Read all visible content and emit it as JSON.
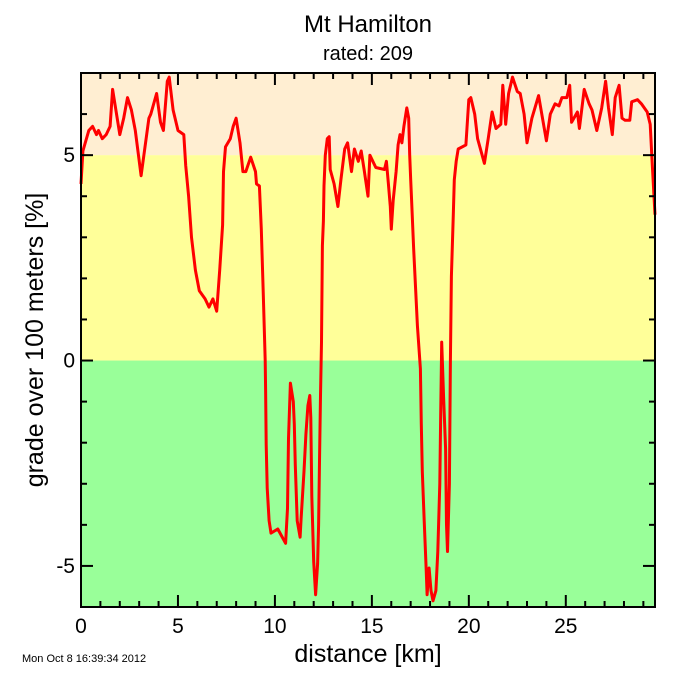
{
  "chart_data": {
    "type": "line",
    "title": "Mt Hamilton",
    "subtitle": "rated: 209",
    "xlabel": "distance [km]",
    "ylabel": "grade over 100 meters [%]",
    "xlim": [
      0,
      29.6
    ],
    "ylim": [
      -6,
      7
    ],
    "xticks": [
      0,
      5,
      10,
      15,
      20,
      25
    ],
    "yticks": [
      -5,
      0,
      5
    ],
    "grid": false,
    "bands": [
      {
        "from": 5,
        "to": 7,
        "color": "#ffeed2"
      },
      {
        "from": 0,
        "to": 5,
        "color": "#ffff99"
      },
      {
        "from": -6,
        "to": 0,
        "color": "#99ff99"
      }
    ],
    "line_color": "#ff0000",
    "x": [
      0,
      0.1,
      0.4,
      0.6,
      0.8,
      0.9,
      1.1,
      1.3,
      1.5,
      1.63,
      2.0,
      2.2,
      2.4,
      2.6,
      2.8,
      3.1,
      3.5,
      3.6,
      3.9,
      4.1,
      4.25,
      4.45,
      4.55,
      4.75,
      5.0,
      5.3,
      5.4,
      5.55,
      5.7,
      5.9,
      6.1,
      6.4,
      6.6,
      6.8,
      7.0,
      7.15,
      7.3,
      7.35,
      7.45,
      7.7,
      7.85,
      8.0,
      8.2,
      8.35,
      8.5,
      8.75,
      9.0,
      9.05,
      9.2,
      9.3,
      9.4,
      9.5,
      9.52,
      9.55,
      9.6,
      9.7,
      9.8,
      10.15,
      10.55,
      10.65,
      10.7,
      10.8,
      10.95,
      11.0,
      11.05,
      11.15,
      11.3,
      11.35,
      11.5,
      11.6,
      11.7,
      11.8,
      11.85,
      11.9,
      12.0,
      12.1,
      12.2,
      12.25,
      12.3,
      12.35,
      12.4,
      12.45,
      12.5,
      12.53,
      12.6,
      12.7,
      12.8,
      12.85,
      13.05,
      13.25,
      13.4,
      13.6,
      13.75,
      13.95,
      14.1,
      14.3,
      14.45,
      14.6,
      14.8,
      14.9,
      15.2,
      15.65,
      15.75,
      15.85,
      15.95,
      16.0,
      16.1,
      16.25,
      16.35,
      16.45,
      16.55,
      16.65,
      16.8,
      16.9,
      16.95,
      17.0,
      17.05,
      17.15,
      17.25,
      17.35,
      17.5,
      17.55,
      17.6,
      17.7,
      17.8,
      17.85,
      17.95,
      18.05,
      18.15,
      18.3,
      18.4,
      18.5,
      18.55,
      18.6,
      18.7,
      18.8,
      18.85,
      18.9,
      19.0,
      19.05,
      19.1,
      19.2,
      19.25,
      19.35,
      19.45,
      19.85,
      20.0,
      20.1,
      20.3,
      20.45,
      20.8,
      21.0,
      21.2,
      21.4,
      21.65,
      21.75,
      21.9,
      22.05,
      22.25,
      22.5,
      22.65,
      22.85,
      23.0,
      23.25,
      23.6,
      23.8,
      24.0,
      24.2,
      24.45,
      24.65,
      24.8,
      25.05,
      25.2,
      25.3,
      25.6,
      25.7,
      25.95,
      26.2,
      26.35,
      26.6,
      26.85,
      27.05,
      27.2,
      27.4,
      27.55,
      27.75,
      27.9,
      28.05,
      28.3,
      28.4,
      28.7,
      28.9,
      29.2,
      29.35,
      29.45,
      29.6
    ],
    "y": [
      4.3,
      5.1,
      5.6,
      5.7,
      5.5,
      5.6,
      5.4,
      5.5,
      5.7,
      6.6,
      5.5,
      5.9,
      6.4,
      6.1,
      5.6,
      4.5,
      5.9,
      6.0,
      6.5,
      5.8,
      5.6,
      6.8,
      6.9,
      6.1,
      5.6,
      5.5,
      4.75,
      4.0,
      3.0,
      2.2,
      1.7,
      1.5,
      1.3,
      1.5,
      1.2,
      2.2,
      3.3,
      4.6,
      5.2,
      5.4,
      5.7,
      5.9,
      5.3,
      4.6,
      4.6,
      4.95,
      4.6,
      4.3,
      4.25,
      3.2,
      1.6,
      0.0,
      -0.7,
      -2.05,
      -3.1,
      -3.9,
      -4.2,
      -4.1,
      -4.45,
      -3.6,
      -1.9,
      -0.55,
      -1.0,
      -1.55,
      -2.55,
      -3.9,
      -4.3,
      -3.85,
      -2.7,
      -1.8,
      -1.1,
      -0.85,
      -1.4,
      -3.3,
      -4.9,
      -5.7,
      -4.95,
      -4.0,
      -2.45,
      -0.85,
      0.45,
      2.8,
      3.4,
      4.25,
      5.0,
      5.4,
      5.45,
      4.65,
      4.3,
      3.75,
      4.4,
      5.15,
      5.3,
      4.6,
      5.15,
      4.85,
      5.1,
      4.65,
      4.0,
      5.0,
      4.7,
      4.65,
      4.85,
      4.3,
      3.75,
      3.2,
      3.9,
      4.6,
      5.25,
      5.5,
      5.3,
      5.7,
      6.15,
      5.9,
      5.0,
      4.4,
      3.9,
      2.75,
      1.8,
      0.85,
      -0.2,
      -1.55,
      -2.7,
      -3.9,
      -5.1,
      -5.7,
      -5.05,
      -5.6,
      -5.85,
      -5.6,
      -4.65,
      -3.0,
      -1.3,
      0.45,
      -0.9,
      -2.15,
      -4.0,
      -4.65,
      -3.0,
      0.0,
      2.05,
      3.55,
      4.4,
      4.85,
      5.15,
      5.25,
      6.35,
      6.4,
      6.0,
      5.4,
      4.8,
      5.4,
      6.05,
      5.65,
      5.75,
      6.7,
      5.75,
      6.5,
      6.9,
      6.55,
      6.5,
      6.0,
      5.3,
      5.9,
      6.45,
      5.9,
      5.35,
      6.0,
      6.25,
      6.2,
      6.4,
      6.4,
      6.7,
      5.8,
      6.05,
      5.65,
      6.6,
      6.25,
      6.1,
      5.6,
      6.15,
      6.8,
      6.15,
      5.5,
      6.4,
      6.7,
      5.9,
      5.85,
      5.85,
      6.3,
      6.35,
      6.25,
      6.05,
      5.75,
      4.85,
      3.55
    ]
  },
  "footer": {
    "timestamp": "Mon Oct  8 16:39:34 2012"
  }
}
